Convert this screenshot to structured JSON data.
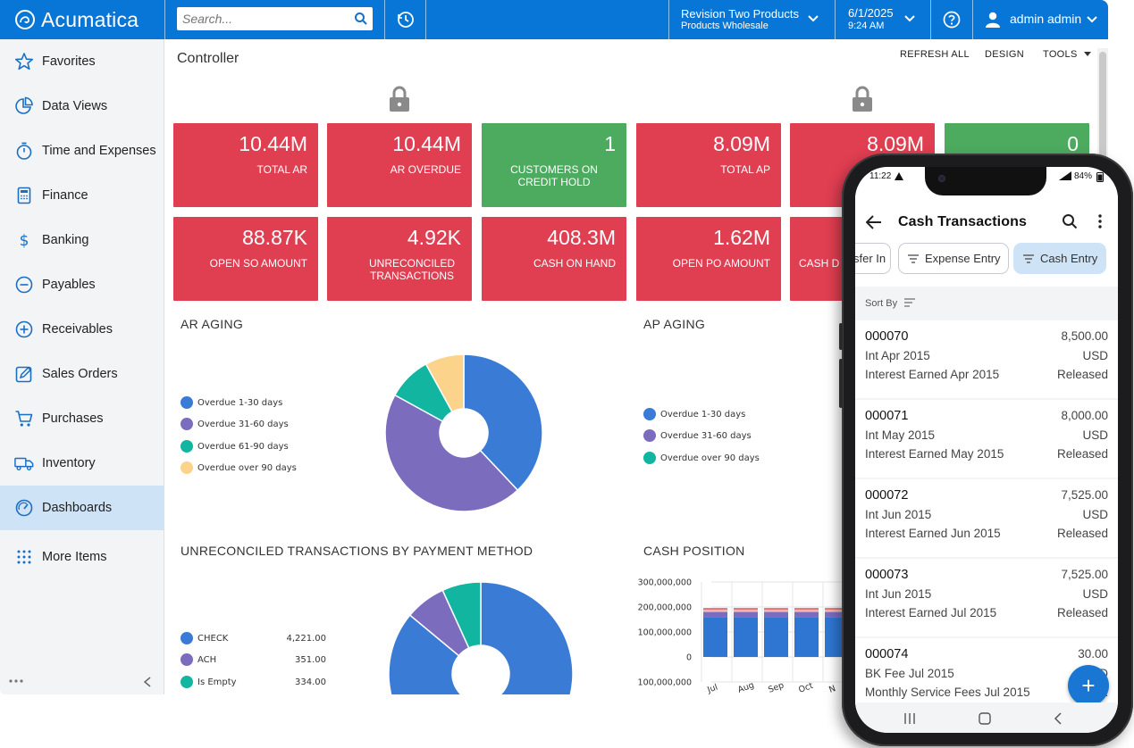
{
  "app": {
    "logo_text": "Acumatica",
    "search_placeholder": "Search...",
    "company_line1": "Revision Two Products",
    "company_line2": "Products Wholesale",
    "date": "6/1/2025",
    "time": "9:24 AM",
    "user": "admin admin",
    "accent": "#0876d6"
  },
  "sidebar": {
    "items": [
      {
        "label": "Favorites",
        "icon": "star-icon"
      },
      {
        "label": "Data Views",
        "icon": "pie-chart-icon"
      },
      {
        "label": "Time and Expenses",
        "icon": "stopwatch-icon"
      },
      {
        "label": "Finance",
        "icon": "calculator-icon"
      },
      {
        "label": "Banking",
        "icon": "dollar-icon"
      },
      {
        "label": "Payables",
        "icon": "minus-circle-icon"
      },
      {
        "label": "Receivables",
        "icon": "plus-circle-icon"
      },
      {
        "label": "Sales Orders",
        "icon": "edit-icon"
      },
      {
        "label": "Purchases",
        "icon": "cart-icon"
      },
      {
        "label": "Inventory",
        "icon": "truck-icon"
      },
      {
        "label": "Dashboards",
        "icon": "gauge-icon"
      },
      {
        "label": "More Items",
        "icon": "grid-dots-icon"
      }
    ],
    "active": "Dashboards"
  },
  "dashboard": {
    "title": "Controller",
    "actions": {
      "refresh": "REFRESH ALL",
      "design": "DESIGN",
      "tools": "TOOLS"
    },
    "tiles_row1": [
      {
        "value": "10.44M",
        "label": "TOTAL AR",
        "color": "#e03e51"
      },
      {
        "value": "10.44M",
        "label": "AR OVERDUE",
        "color": "#e03e51"
      },
      {
        "value": "1",
        "label": "CUSTOMERS ON CREDIT HOLD",
        "color": "#4dab5f"
      },
      {
        "value": "8.09M",
        "label": "TOTAL AP",
        "color": "#e03e51"
      },
      {
        "value": "8.09M",
        "label": "",
        "color": "#e03e51"
      },
      {
        "value": "0",
        "label": "",
        "color": "#4dab5f"
      }
    ],
    "tiles_row2": [
      {
        "value": "88.87K",
        "label": "OPEN SO AMOUNT"
      },
      {
        "value": "4.92K",
        "label": "UNRECONCILED TRANSACTIONS"
      },
      {
        "value": "408.3M",
        "label": "CASH ON HAND"
      },
      {
        "value": "1.62M",
        "label": "OPEN PO AMOUNT"
      },
      {
        "value": "",
        "label": "CASH D"
      }
    ],
    "sections": {
      "ar_aging": "AR AGING",
      "ap_aging": "AP AGING",
      "unreconciled": "UNRECONCILED TRANSACTIONS BY PAYMENT METHOD",
      "cash_position": "CASH POSITION"
    }
  },
  "chart_data": [
    {
      "type": "pie",
      "title": "AR AGING",
      "categories": [
        "Overdue 1-30 days",
        "Overdue 31-60 days",
        "Overdue 61-90 days",
        "Overdue over 90 days"
      ],
      "values": [
        38,
        45,
        9,
        8
      ],
      "colors": [
        "#3a7bd5",
        "#7b6cbd",
        "#12b5a0",
        "#fcd38a"
      ],
      "legend": "left"
    },
    {
      "type": "pie",
      "title": "AP AGING",
      "categories": [
        "Overdue 1-30 days",
        "Overdue 31-60 days",
        "Overdue over 90 days"
      ],
      "colors": [
        "#3a7bd5",
        "#7b6cbd",
        "#12b5a0"
      ],
      "legend": "left"
    },
    {
      "type": "pie",
      "title": "UNRECONCILED TRANSACTIONS BY PAYMENT METHOD",
      "categories": [
        "CHECK",
        "ACH",
        "Is Empty"
      ],
      "values": [
        4221.0,
        351.0,
        334.0
      ],
      "value_labels": [
        "4,221.00",
        "351.00",
        "334.00"
      ],
      "colors": [
        "#3a7bd5",
        "#7b6cbd",
        "#12b5a0"
      ],
      "legend": "left"
    },
    {
      "type": "bar",
      "title": "CASH POSITION",
      "categories": [
        "Jul",
        "Aug",
        "Sep",
        "Oct",
        "N"
      ],
      "y_tick_labels": [
        "300,000,000",
        "200,000,000",
        "100,000,000",
        "0",
        "-100,000,000"
      ],
      "ylim": [
        -100000000,
        300000000
      ],
      "series": [
        {
          "values": [
            160000000,
            160000000,
            160000000,
            160000000,
            160000000
          ],
          "color": "#2f76d2"
        },
        {
          "values": [
            20000000,
            20000000,
            20000000,
            20000000,
            20000000
          ],
          "color": "#7b6cbd"
        },
        {
          "values": [
            12000000,
            12000000,
            12000000,
            12000000,
            12000000
          ],
          "color": "#e8b7bb"
        }
      ],
      "grid": true
    }
  ],
  "phone": {
    "status_time": "11:22",
    "battery": "84%",
    "title": "Cash Transactions",
    "chips": [
      "sfer In",
      "Expense Entry",
      "Cash Entry"
    ],
    "selected_chip": "Cash Entry",
    "sort_label": "Sort By",
    "rows": [
      {
        "id": "000070",
        "amount": "8,500.00",
        "desc": "Int Apr 2015",
        "currency": "USD",
        "desc2": "Interest Earned Apr 2015",
        "status": "Released"
      },
      {
        "id": "000071",
        "amount": "8,000.00",
        "desc": "Int May 2015",
        "currency": "USD",
        "desc2": "Interest Earned May 2015",
        "status": "Released"
      },
      {
        "id": "000072",
        "amount": "7,525.00",
        "desc": "Int Jun 2015",
        "currency": "USD",
        "desc2": "Interest Earned Jun 2015",
        "status": "Released"
      },
      {
        "id": "000073",
        "amount": "7,525.00",
        "desc": "Int Jun 2015",
        "currency": "USD",
        "desc2": "Interest Earned Jul 2015",
        "status": "Released"
      },
      {
        "id": "000074",
        "amount": "30.00",
        "desc": "BK Fee Jul 2015",
        "currency": "USD",
        "desc2": "Monthly Service Fees Jul 2015",
        "status": "R"
      }
    ],
    "fab": "+"
  }
}
